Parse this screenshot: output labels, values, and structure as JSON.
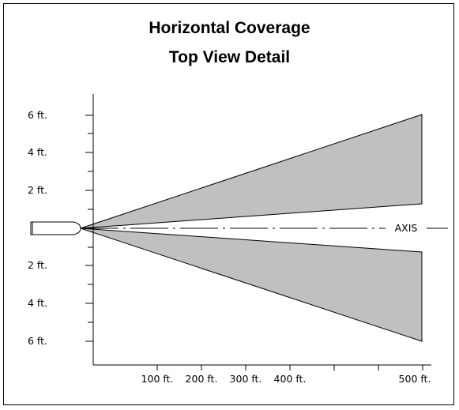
{
  "title": "Horizontal Coverage",
  "subtitle": "Top View Detail",
  "axis_label": "AXIS",
  "y_tick_labels_upper": [
    "6 ft.",
    "4 ft.",
    "2 ft."
  ],
  "y_tick_labels_lower": [
    "2 ft.",
    "4 ft.",
    "6 ft."
  ],
  "x_tick_labels": [
    "100 ft.",
    "200 ft.",
    "300 ft.",
    "400 ft.",
    "500 ft."
  ],
  "colors": {
    "beam_fill": "#c0c0c0",
    "stroke": "#000000",
    "background": "#ffffff"
  }
}
